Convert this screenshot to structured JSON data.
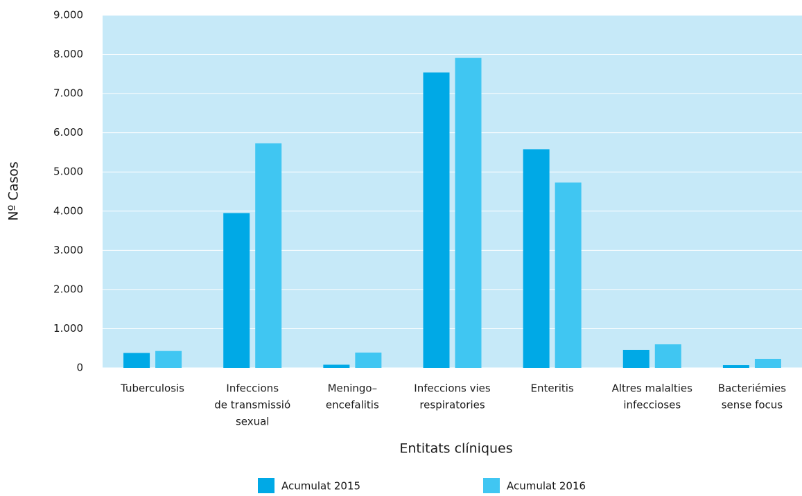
{
  "chart_data": {
    "type": "bar",
    "x_label": "Entitats clíniques",
    "y_label": "Nº Casos",
    "categories": [
      [
        "Tuberculosis"
      ],
      [
        "Infeccions",
        "de transmissió",
        "sexual"
      ],
      [
        "Meningo–",
        "encefalitis"
      ],
      [
        "Infeccions vies",
        "respiratories"
      ],
      [
        "Enteritis"
      ],
      [
        "Altres malalties",
        "infeccioses"
      ],
      [
        "Bacteriémies",
        "sense focus"
      ]
    ],
    "series": [
      {
        "name": "Acumulat 2015",
        "color": "#00a9e6",
        "values": [
          380,
          3950,
          80,
          7540,
          5580,
          460,
          70
        ]
      },
      {
        "name": "Acumulat 2016",
        "color": "#40c6f2",
        "values": [
          430,
          5730,
          390,
          7910,
          4730,
          600,
          230
        ]
      }
    ],
    "ylim": [
      0,
      9000
    ],
    "yticks": [
      0,
      {
        "value": 1000,
        "label": "1.000"
      },
      {
        "value": 2000,
        "label": "2.000"
      },
      {
        "value": 3000,
        "label": "3.000"
      },
      {
        "value": 4000,
        "label": "4.000"
      },
      {
        "value": 5000,
        "label": "5.000"
      },
      {
        "value": 6000,
        "label": "6.000"
      },
      {
        "value": 7000,
        "label": "7.000"
      },
      {
        "value": 8000,
        "label": "8.000"
      },
      {
        "value": 9000,
        "label": "9.000"
      }
    ],
    "grid": true,
    "background": "#c6e9f8"
  }
}
